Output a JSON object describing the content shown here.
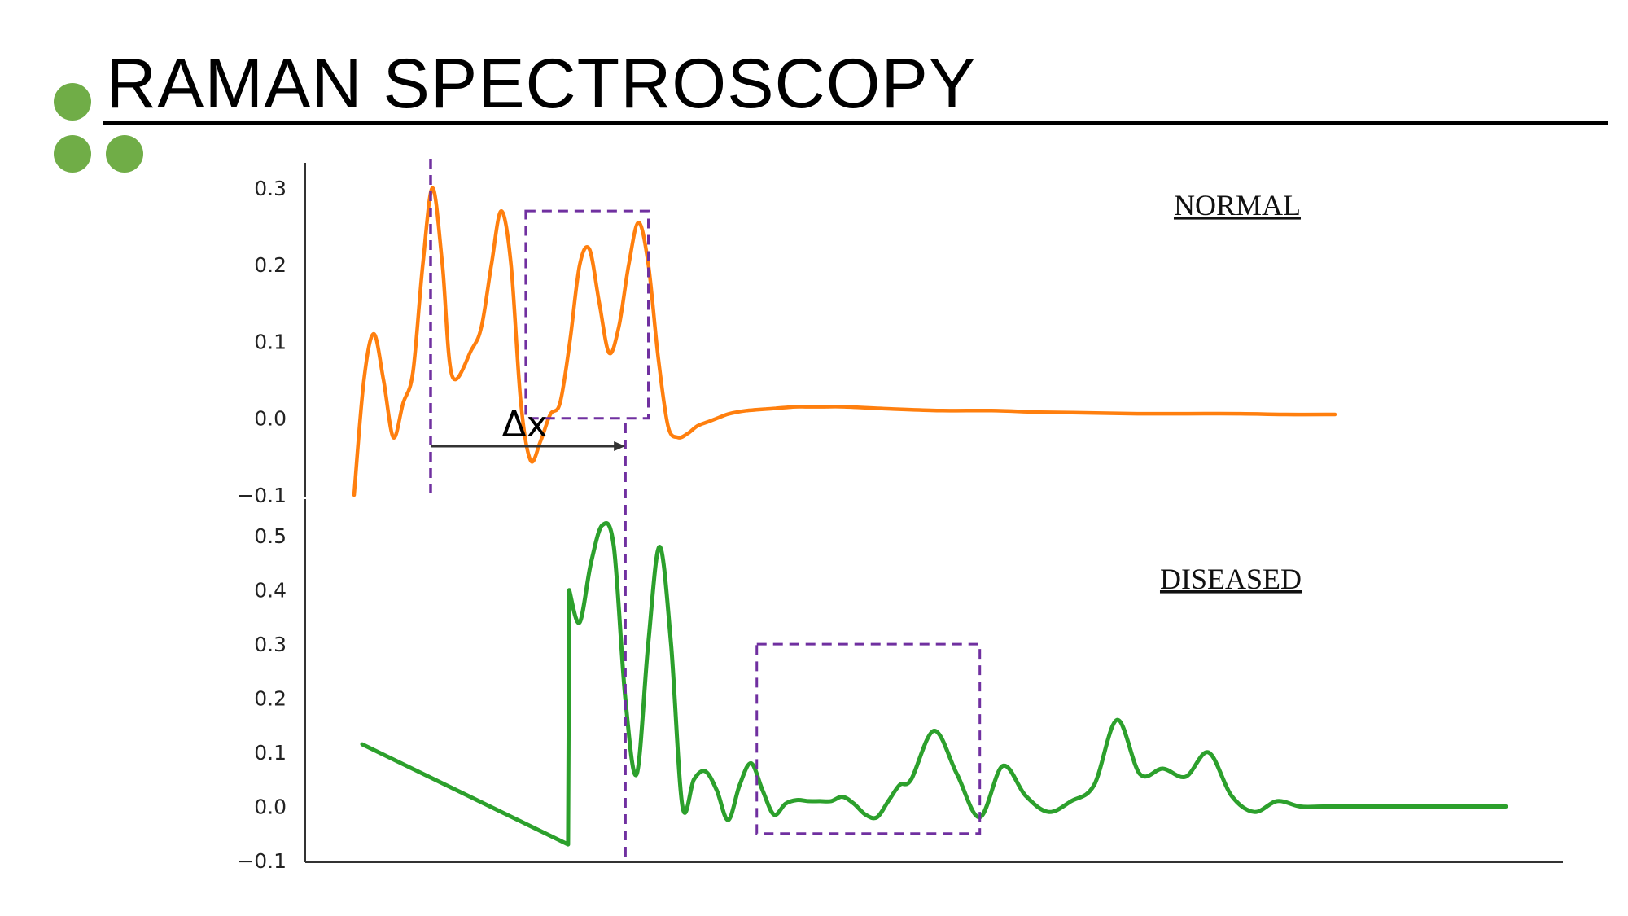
{
  "slide": {
    "title": "RAMAN SPECTROSCOPY",
    "bullet_color": "#70ad47"
  },
  "chart_data": [
    {
      "type": "line",
      "title": "",
      "xlabel": "",
      "ylabel": "",
      "annotation": "NORMAL",
      "color": "#ff7f0e",
      "ylim": [
        -0.1,
        0.32
      ],
      "yticks": [
        "0.3",
        "0.2",
        "0.1",
        "0.0",
        "−0.1"
      ],
      "ytick_values": [
        0.3,
        0.2,
        0.1,
        0.0,
        -0.1
      ],
      "xlim": [
        0,
        100
      ],
      "x": [
        0,
        1,
        2,
        3,
        4,
        5,
        6,
        7,
        8,
        9,
        10,
        12,
        13,
        14,
        15,
        16,
        17,
        18,
        19,
        20,
        21,
        22,
        23,
        24,
        25,
        26,
        27,
        28,
        29,
        30,
        31,
        32,
        33,
        34,
        35,
        36,
        37,
        38,
        39,
        40,
        41,
        42,
        43,
        44,
        45,
        46,
        47,
        48,
        50,
        55,
        60,
        65,
        70,
        75,
        80,
        85,
        90,
        95,
        100
      ],
      "y": [
        -0.1,
        0.05,
        0.11,
        0.05,
        -0.025,
        0.02,
        0.06,
        0.2,
        0.3,
        0.2,
        0.055,
        0.09,
        0.12,
        0.2,
        0.27,
        0.2,
        0.02,
        -0.055,
        -0.03,
        0.005,
        0.02,
        0.1,
        0.2,
        0.22,
        0.15,
        0.085,
        0.12,
        0.2,
        0.255,
        0.2,
        0.08,
        -0.01,
        -0.025,
        -0.02,
        -0.01,
        -0.005,
        0.0,
        0.005,
        0.008,
        0.01,
        0.011,
        0.012,
        0.013,
        0.014,
        0.015,
        0.015,
        0.015,
        0.015,
        0.015,
        0.012,
        0.01,
        0.01,
        0.008,
        0.007,
        0.006,
        0.006,
        0.006,
        0.005,
        0.005
      ],
      "vline_x": 7.8,
      "box": {
        "x": [
          17.5,
          30
        ],
        "y": [
          0.0,
          0.27
        ]
      }
    },
    {
      "type": "line",
      "title": "",
      "xlabel": "",
      "ylabel": "",
      "annotation": "DISEASED",
      "color": "#2ca02c",
      "ylim": [
        -0.1,
        0.55
      ],
      "yticks": [
        "0.5",
        "0.4",
        "0.3",
        "0.2",
        "0.1",
        "0.0",
        "−0.1"
      ],
      "ytick_values": [
        0.5,
        0.4,
        0.3,
        0.2,
        0.1,
        0.0,
        -0.1
      ],
      "xlim": [
        0,
        100
      ],
      "x": [
        0,
        18,
        18.1,
        19,
        20,
        21,
        22,
        23,
        24,
        25,
        26,
        27,
        28,
        29,
        30,
        31,
        32,
        33,
        34,
        35,
        36,
        37,
        38,
        39,
        40,
        41,
        42,
        43,
        44,
        45,
        46,
        47,
        48,
        50,
        52,
        54,
        56,
        58,
        60,
        62,
        64,
        66,
        68,
        70,
        72,
        74,
        76,
        78,
        80,
        82,
        84,
        86,
        88,
        90,
        92,
        94,
        96,
        98,
        100
      ],
      "y": [
        0.115,
        -0.07,
        0.4,
        0.34,
        0.45,
        0.52,
        0.48,
        0.2,
        0.06,
        0.3,
        0.48,
        0.3,
        0.0,
        0.05,
        0.065,
        0.03,
        -0.025,
        0.04,
        0.08,
        0.03,
        -0.015,
        0.005,
        0.012,
        0.01,
        0.01,
        0.01,
        0.018,
        0.005,
        -0.015,
        -0.02,
        0.01,
        0.04,
        0.05,
        0.14,
        0.06,
        -0.02,
        0.075,
        0.02,
        -0.01,
        0.01,
        0.04,
        0.16,
        0.06,
        0.07,
        0.055,
        0.1,
        0.02,
        -0.01,
        0.01,
        0.0,
        0.0,
        0.0,
        0.0,
        0.0,
        0.0,
        0.0,
        0.0,
        0.0,
        0.0
      ],
      "vline_x": 23,
      "box": {
        "x": [
          34.5,
          54
        ],
        "y": [
          -0.05,
          0.3
        ]
      }
    }
  ],
  "delta_label": "Δx"
}
